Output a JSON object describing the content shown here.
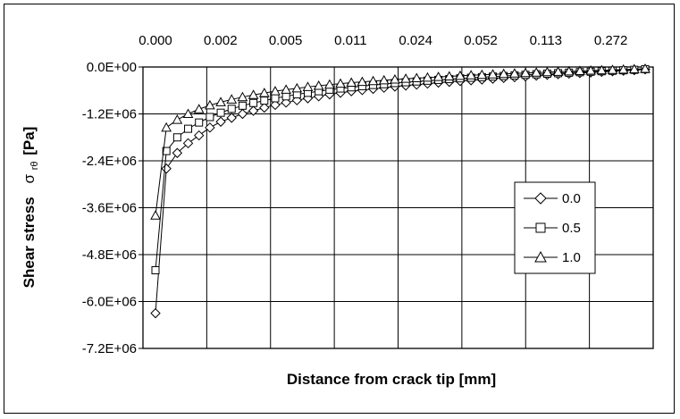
{
  "chart_data": {
    "type": "line",
    "xlabel": "Distance from crack tip   [mm]",
    "ylabel": "Shear stress",
    "ylabel_symbol": "σ",
    "ylabel_subscript": "rθ",
    "ylabel_unit": "[Pa]",
    "ylim": [
      -7200000,
      0
    ],
    "yticks": [
      0,
      -1200000,
      -2400000,
      -3600000,
      -4800000,
      -6000000,
      -7200000
    ],
    "ytick_labels": [
      "0.0E+00",
      "-1.2E+06",
      "-2.4E+06",
      "-3.6E+06",
      "-4.8E+06",
      "-6.0E+06",
      "-7.2E+06"
    ],
    "x_point_count": 46,
    "x_tick_labels": [
      "0.000",
      "0.002",
      "0.005",
      "0.011",
      "0.024",
      "0.052",
      "0.113",
      "0.272"
    ],
    "grid": true,
    "legend_position": "right",
    "series": [
      {
        "name": "0.0",
        "marker": "diamond",
        "values": [
          -6300000,
          -2600000,
          -2200000,
          -1950000,
          -1750000,
          -1550000,
          -1400000,
          -1300000,
          -1200000,
          -1120000,
          -1040000,
          -970000,
          -910000,
          -850000,
          -800000,
          -750000,
          -700000,
          -660000,
          -620000,
          -590000,
          -560000,
          -530000,
          -500000,
          -475000,
          -450000,
          -425000,
          -400000,
          -380000,
          -360000,
          -340000,
          -320000,
          -300000,
          -280000,
          -260000,
          -240000,
          -220000,
          -200000,
          -185000,
          -170000,
          -155000,
          -140000,
          -125000,
          -110000,
          -95000,
          -80000,
          -60000
        ]
      },
      {
        "name": "0.5",
        "marker": "square",
        "values": [
          -5200000,
          -2150000,
          -1800000,
          -1580000,
          -1420000,
          -1280000,
          -1170000,
          -1070000,
          -990000,
          -920000,
          -860000,
          -800000,
          -750000,
          -700000,
          -660000,
          -620000,
          -580000,
          -550000,
          -520000,
          -490000,
          -460000,
          -440000,
          -410000,
          -390000,
          -370000,
          -350000,
          -330000,
          -310000,
          -290000,
          -275000,
          -260000,
          -245000,
          -230000,
          -215000,
          -200000,
          -185000,
          -170000,
          -158000,
          -145000,
          -132000,
          -120000,
          -108000,
          -96000,
          -84000,
          -72000,
          -55000
        ]
      },
      {
        "name": "1.0",
        "marker": "triangle",
        "values": [
          -3800000,
          -1550000,
          -1350000,
          -1200000,
          -1080000,
          -980000,
          -900000,
          -830000,
          -770000,
          -715000,
          -665000,
          -620000,
          -580000,
          -545000,
          -510000,
          -480000,
          -450000,
          -425000,
          -400000,
          -380000,
          -360000,
          -340000,
          -320000,
          -300000,
          -285000,
          -270000,
          -255000,
          -240000,
          -225000,
          -212000,
          -200000,
          -188000,
          -176000,
          -165000,
          -154000,
          -143000,
          -132000,
          -122000,
          -112000,
          -102000,
          -92000,
          -83000,
          -74000,
          -65000,
          -56000,
          -45000
        ]
      }
    ]
  }
}
